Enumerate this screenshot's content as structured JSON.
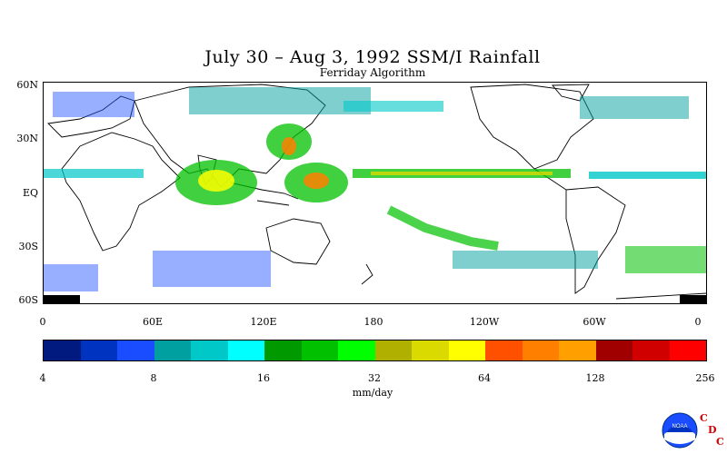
{
  "title": "July 30 – Aug 3, 1992 SSM/I Rainfall",
  "subtitle": "Ferriday Algorithm",
  "lat_labels": [
    "60N",
    "30N",
    "EQ",
    "30S",
    "60S"
  ],
  "lon_labels": [
    "0",
    "60E",
    "120E",
    "180",
    "120W",
    "60W",
    "0"
  ],
  "colorbar": {
    "colors": [
      "#001a80",
      "#0033c0",
      "#1a4dff",
      "#00a0a0",
      "#00c8c8",
      "#00ffff",
      "#009900",
      "#00c000",
      "#00ff00",
      "#b0b000",
      "#dada00",
      "#ffff00",
      "#ff5000",
      "#ff8000",
      "#ffa000",
      "#a00000",
      "#d00000",
      "#ff0000"
    ],
    "tick_labels": [
      "4",
      "8",
      "16",
      "32",
      "64",
      "128",
      "256"
    ],
    "units": "mm/day"
  },
  "credit": {
    "logo_text": "NOAA",
    "cdc_letters": [
      "C",
      "D",
      "C"
    ]
  }
}
